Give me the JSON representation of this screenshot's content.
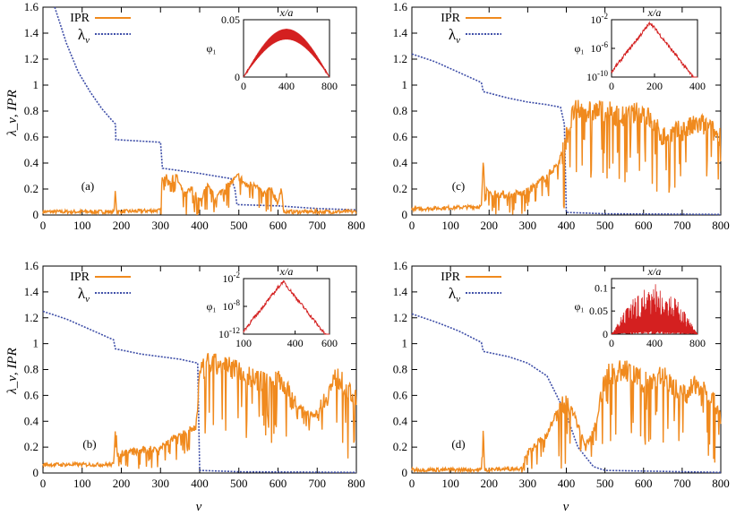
{
  "figure": {
    "xlabel": "ν",
    "ylabel": "λ_ν, IPR",
    "colors": {
      "ipr": "#f08a1e",
      "lambda": "#3f4fa8",
      "phi": "#d42020"
    }
  },
  "chart_data": [
    {
      "type": "line",
      "panel": "(a)",
      "xlim": [
        0,
        800
      ],
      "ylim": [
        0,
        1.6
      ],
      "x_ticks": [
        0,
        100,
        200,
        300,
        400,
        500,
        600,
        700,
        800
      ],
      "y_ticks": [
        "0",
        "0.2",
        "0.4",
        "0.6",
        "0.8",
        "1",
        "1.2",
        "1.4",
        "1.6"
      ],
      "legend": [
        "IPR",
        "λ_ν"
      ],
      "lambda_points": [
        [
          30,
          1.6
        ],
        [
          60,
          1.32
        ],
        [
          90,
          1.1
        ],
        [
          120,
          0.95
        ],
        [
          150,
          0.82
        ],
        [
          170,
          0.75
        ],
        [
          185,
          0.7
        ],
        [
          186,
          0.58
        ],
        [
          300,
          0.56
        ],
        [
          305,
          0.36
        ],
        [
          400,
          0.32
        ],
        [
          480,
          0.28
        ],
        [
          490,
          0.2
        ],
        [
          495,
          0.08
        ],
        [
          600,
          0.07
        ],
        [
          700,
          0.05
        ],
        [
          800,
          0.04
        ]
      ],
      "ipr_points": [
        [
          0,
          0.01
        ],
        [
          180,
          0.01
        ],
        [
          185,
          0.2
        ],
        [
          188,
          0.01
        ],
        [
          300,
          0.02
        ],
        [
          305,
          0.35
        ],
        [
          320,
          0.25
        ],
        [
          340,
          0.3
        ],
        [
          360,
          0.15
        ],
        [
          380,
          0.2
        ],
        [
          400,
          0.1
        ],
        [
          420,
          0.22
        ],
        [
          440,
          0.12
        ],
        [
          460,
          0.2
        ],
        [
          480,
          0.25
        ],
        [
          500,
          0.3
        ],
        [
          520,
          0.22
        ],
        [
          540,
          0.25
        ],
        [
          560,
          0.15
        ],
        [
          580,
          0.2
        ],
        [
          600,
          0.1
        ],
        [
          610,
          0.2
        ],
        [
          615,
          0.01
        ],
        [
          800,
          0.01
        ]
      ],
      "inset": {
        "xlabel": "x/a",
        "ylabel": "φ₁",
        "xlim": [
          0,
          800
        ],
        "ylim": [
          0,
          0.05
        ],
        "x_ticks": [
          "0",
          "400",
          "800"
        ],
        "y_ticks": [
          "0",
          "0.05"
        ],
        "log": false,
        "shape": "dome",
        "peak": 0.042
      }
    },
    {
      "type": "line",
      "panel": "(c)",
      "xlim": [
        0,
        800
      ],
      "ylim": [
        0,
        1.6
      ],
      "x_ticks": [
        0,
        100,
        200,
        300,
        400,
        500,
        600,
        700,
        800
      ],
      "y_ticks": [
        "0",
        "0.2",
        "0.4",
        "0.6",
        "0.8",
        "1",
        "1.2",
        "1.4",
        "1.6"
      ],
      "legend": [
        "IPR",
        "λ_ν"
      ],
      "lambda_points": [
        [
          0,
          1.24
        ],
        [
          60,
          1.18
        ],
        [
          120,
          1.1
        ],
        [
          180,
          1.02
        ],
        [
          185,
          0.95
        ],
        [
          250,
          0.9
        ],
        [
          300,
          0.87
        ],
        [
          350,
          0.85
        ],
        [
          385,
          0.83
        ],
        [
          395,
          0.7
        ],
        [
          400,
          0.02
        ],
        [
          500,
          0.01
        ],
        [
          800,
          0.005
        ]
      ],
      "ipr_points": [
        [
          0,
          0.03
        ],
        [
          180,
          0.05
        ],
        [
          185,
          0.45
        ],
        [
          190,
          0.18
        ],
        [
          250,
          0.15
        ],
        [
          300,
          0.18
        ],
        [
          350,
          0.3
        ],
        [
          380,
          0.4
        ],
        [
          400,
          0.6
        ],
        [
          420,
          0.8
        ],
        [
          500,
          0.8
        ],
        [
          550,
          0.75
        ],
        [
          600,
          0.8
        ],
        [
          650,
          0.6
        ],
        [
          700,
          0.65
        ],
        [
          750,
          0.7
        ],
        [
          800,
          0.6
        ]
      ],
      "inset": {
        "xlabel": "x/a",
        "ylabel": "φ₁",
        "xlim": [
          0,
          400
        ],
        "x_ticks": [
          "0",
          "200",
          "400"
        ],
        "y_ticks": [
          "10^-10",
          "10^-6",
          "10^-2"
        ],
        "log": true,
        "shape": "peak",
        "peak_at": 180
      }
    },
    {
      "type": "line",
      "panel": "(b)",
      "xlim": [
        0,
        800
      ],
      "ylim": [
        0,
        1.6
      ],
      "x_ticks": [
        0,
        100,
        200,
        300,
        400,
        500,
        600,
        700,
        800
      ],
      "y_ticks": [
        "0",
        "0.2",
        "0.4",
        "0.6",
        "0.8",
        "1",
        "1.2",
        "1.4",
        "1.6"
      ],
      "legend": [
        "IPR",
        "λ_ν"
      ],
      "lambda_points": [
        [
          0,
          1.25
        ],
        [
          60,
          1.19
        ],
        [
          120,
          1.11
        ],
        [
          180,
          1.03
        ],
        [
          185,
          0.96
        ],
        [
          250,
          0.92
        ],
        [
          300,
          0.9
        ],
        [
          350,
          0.88
        ],
        [
          395,
          0.85
        ],
        [
          400,
          0.02
        ],
        [
          500,
          0.01
        ],
        [
          800,
          0.005
        ]
      ],
      "ipr_points": [
        [
          0,
          0.05
        ],
        [
          180,
          0.05
        ],
        [
          185,
          0.38
        ],
        [
          190,
          0.15
        ],
        [
          250,
          0.17
        ],
        [
          300,
          0.2
        ],
        [
          350,
          0.3
        ],
        [
          390,
          0.35
        ],
        [
          400,
          0.75
        ],
        [
          420,
          0.85
        ],
        [
          500,
          0.8
        ],
        [
          550,
          0.7
        ],
        [
          600,
          0.75
        ],
        [
          650,
          0.5
        ],
        [
          700,
          0.45
        ],
        [
          750,
          0.75
        ],
        [
          800,
          0.55
        ]
      ],
      "inset": {
        "xlabel": "x/a",
        "ylabel": "φ₁",
        "xlim": [
          100,
          600
        ],
        "x_ticks": [
          "100",
          "400",
          "600"
        ],
        "y_ticks": [
          "10^-12",
          "10^-8",
          "10^-2"
        ],
        "log": true,
        "shape": "peak",
        "peak_at": 330
      }
    },
    {
      "type": "line",
      "panel": "(d)",
      "xlim": [
        0,
        800
      ],
      "ylim": [
        0,
        1.6
      ],
      "x_ticks": [
        0,
        100,
        200,
        300,
        400,
        500,
        600,
        700,
        800
      ],
      "y_ticks": [
        "0",
        "0.2",
        "0.4",
        "0.6",
        "0.8",
        "1",
        "1.2",
        "1.4",
        "1.6"
      ],
      "legend": [
        "IPR",
        "λ_ν"
      ],
      "lambda_points": [
        [
          0,
          1.23
        ],
        [
          60,
          1.17
        ],
        [
          120,
          1.1
        ],
        [
          180,
          1.01
        ],
        [
          185,
          0.94
        ],
        [
          250,
          0.9
        ],
        [
          300,
          0.85
        ],
        [
          350,
          0.75
        ],
        [
          400,
          0.45
        ],
        [
          430,
          0.2
        ],
        [
          470,
          0.05
        ],
        [
          500,
          0.02
        ],
        [
          800,
          0.005
        ]
      ],
      "ipr_points": [
        [
          0,
          0.01
        ],
        [
          180,
          0.01
        ],
        [
          185,
          0.35
        ],
        [
          188,
          0.01
        ],
        [
          280,
          0.02
        ],
        [
          300,
          0.15
        ],
        [
          350,
          0.3
        ],
        [
          380,
          0.5
        ],
        [
          400,
          0.55
        ],
        [
          420,
          0.45
        ],
        [
          450,
          0.2
        ],
        [
          480,
          0.4
        ],
        [
          500,
          0.75
        ],
        [
          550,
          0.8
        ],
        [
          600,
          0.7
        ],
        [
          650,
          0.75
        ],
        [
          700,
          0.6
        ],
        [
          750,
          0.7
        ],
        [
          800,
          0.45
        ]
      ],
      "inset": {
        "xlabel": "x/a",
        "ylabel": "φ₁",
        "xlim": [
          0,
          800
        ],
        "ylim": [
          0,
          0.12
        ],
        "x_ticks": [
          "0",
          "400",
          "800"
        ],
        "y_ticks": [
          "0",
          "0.05",
          "0.1"
        ],
        "log": false,
        "shape": "spiky"
      }
    }
  ]
}
